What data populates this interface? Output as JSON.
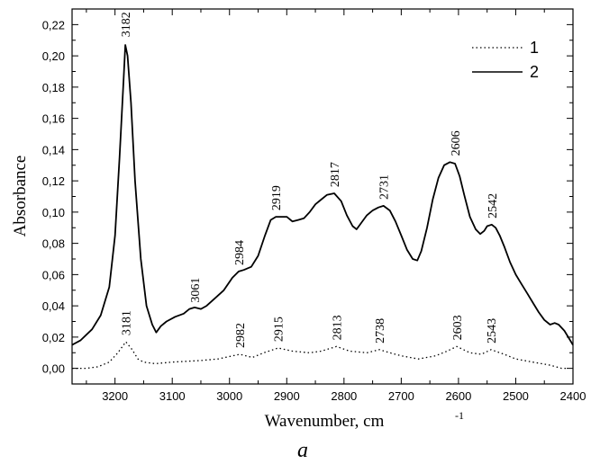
{
  "chart_data": {
    "type": "line",
    "title": "",
    "xlabel": "Wavenumber, cm",
    "xlabel_superscript": "-1",
    "ylabel": "Absorbance",
    "panel_label": "a",
    "xlim": [
      3275,
      2400
    ],
    "x_reversed": true,
    "ylim": [
      -0.01,
      0.23
    ],
    "x_ticks": [
      3200,
      3100,
      3000,
      2900,
      2800,
      2700,
      2600,
      2500,
      2400
    ],
    "y_ticks": [
      "0,00",
      "0,02",
      "0,04",
      "0,06",
      "0,08",
      "0,10",
      "0,12",
      "0,14",
      "0,16",
      "0,18",
      "0,20",
      "0,22"
    ],
    "y_tick_values": [
      0,
      0.02,
      0.04,
      0.06,
      0.08,
      0.1,
      0.12,
      0.14,
      0.16,
      0.18,
      0.2,
      0.22
    ],
    "grid": false,
    "legend_position": "top-right",
    "legend": [
      {
        "label": "1",
        "style": "dotted"
      },
      {
        "label": "2",
        "style": "solid"
      }
    ],
    "series": [
      {
        "name": "1",
        "style": "dotted",
        "x": [
          3275,
          3250,
          3230,
          3210,
          3195,
          3181,
          3170,
          3160,
          3150,
          3130,
          3100,
          3050,
          3020,
          2982,
          2960,
          2940,
          2915,
          2890,
          2860,
          2840,
          2813,
          2790,
          2760,
          2738,
          2720,
          2700,
          2670,
          2640,
          2620,
          2603,
          2580,
          2560,
          2543,
          2520,
          2500,
          2470,
          2440,
          2420,
          2410
        ],
        "y": [
          0.0,
          0.0,
          0.001,
          0.004,
          0.01,
          0.017,
          0.012,
          0.006,
          0.004,
          0.003,
          0.004,
          0.005,
          0.006,
          0.009,
          0.007,
          0.01,
          0.013,
          0.011,
          0.01,
          0.011,
          0.014,
          0.011,
          0.01,
          0.012,
          0.01,
          0.008,
          0.006,
          0.008,
          0.011,
          0.014,
          0.01,
          0.009,
          0.012,
          0.009,
          0.006,
          0.004,
          0.002,
          0.0,
          0.0
        ]
      },
      {
        "name": "2",
        "style": "solid",
        "x": [
          3275,
          3260,
          3240,
          3225,
          3210,
          3200,
          3192,
          3185,
          3182,
          3178,
          3172,
          3165,
          3155,
          3145,
          3135,
          3128,
          3120,
          3110,
          3095,
          3080,
          3070,
          3061,
          3050,
          3040,
          3025,
          3010,
          2995,
          2984,
          2975,
          2962,
          2950,
          2938,
          2928,
          2919,
          2910,
          2900,
          2890,
          2880,
          2870,
          2860,
          2850,
          2840,
          2830,
          2817,
          2805,
          2795,
          2785,
          2778,
          2770,
          2760,
          2750,
          2740,
          2731,
          2720,
          2710,
          2700,
          2690,
          2680,
          2672,
          2665,
          2655,
          2645,
          2635,
          2625,
          2615,
          2606,
          2598,
          2590,
          2580,
          2570,
          2562,
          2555,
          2550,
          2542,
          2535,
          2528,
          2520,
          2510,
          2500,
          2490,
          2480,
          2470,
          2460,
          2450,
          2440,
          2432,
          2425,
          2415,
          2400
        ],
        "y": [
          0.015,
          0.018,
          0.025,
          0.034,
          0.052,
          0.085,
          0.135,
          0.185,
          0.207,
          0.2,
          0.17,
          0.12,
          0.07,
          0.04,
          0.028,
          0.023,
          0.027,
          0.03,
          0.033,
          0.035,
          0.038,
          0.039,
          0.038,
          0.04,
          0.045,
          0.05,
          0.058,
          0.062,
          0.063,
          0.065,
          0.072,
          0.085,
          0.095,
          0.097,
          0.097,
          0.097,
          0.094,
          0.095,
          0.096,
          0.1,
          0.105,
          0.108,
          0.111,
          0.112,
          0.107,
          0.098,
          0.091,
          0.089,
          0.093,
          0.098,
          0.101,
          0.103,
          0.104,
          0.101,
          0.094,
          0.085,
          0.076,
          0.07,
          0.069,
          0.075,
          0.09,
          0.108,
          0.122,
          0.13,
          0.132,
          0.131,
          0.123,
          0.111,
          0.097,
          0.089,
          0.086,
          0.088,
          0.091,
          0.092,
          0.09,
          0.085,
          0.078,
          0.068,
          0.06,
          0.054,
          0.048,
          0.042,
          0.036,
          0.031,
          0.028,
          0.029,
          0.028,
          0.024,
          0.015
        ]
      }
    ],
    "annotations": [
      {
        "text": "3182",
        "x": 3182,
        "y": 0.212
      },
      {
        "text": "3061",
        "x": 3061,
        "y": 0.042
      },
      {
        "text": "2984",
        "x": 2984,
        "y": 0.066
      },
      {
        "text": "2919",
        "x": 2919,
        "y": 0.101
      },
      {
        "text": "2817",
        "x": 2817,
        "y": 0.116
      },
      {
        "text": "2731",
        "x": 2731,
        "y": 0.108
      },
      {
        "text": "2606",
        "x": 2606,
        "y": 0.136
      },
      {
        "text": "2542",
        "x": 2542,
        "y": 0.096
      },
      {
        "text": "3181",
        "x": 3181,
        "y": 0.021
      },
      {
        "text": "2982",
        "x": 2982,
        "y": 0.013
      },
      {
        "text": "2915",
        "x": 2915,
        "y": 0.017
      },
      {
        "text": "2813",
        "x": 2813,
        "y": 0.018
      },
      {
        "text": "2738",
        "x": 2738,
        "y": 0.016
      },
      {
        "text": "2603",
        "x": 2603,
        "y": 0.018
      },
      {
        "text": "2543",
        "x": 2543,
        "y": 0.016
      }
    ]
  }
}
